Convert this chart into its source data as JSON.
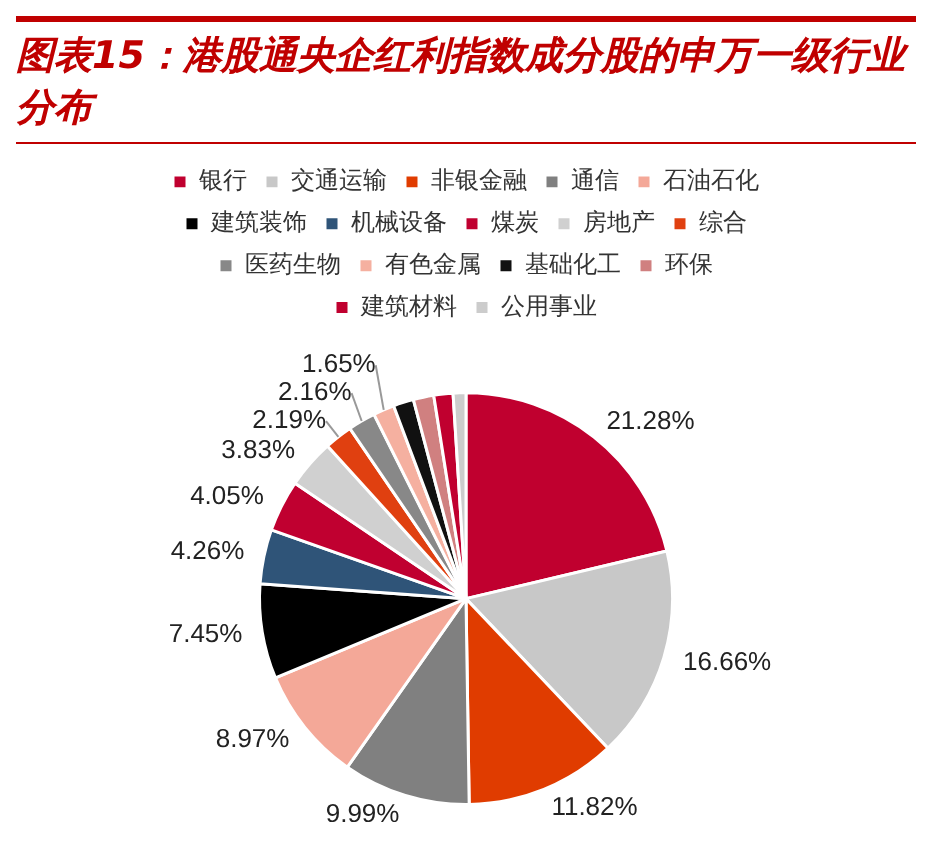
{
  "chart_data": {
    "type": "pie",
    "title": "图表15：港股通央企红利指数成分股的申万一级行业分布",
    "categories": [
      "银行",
      "交通运输",
      "非银金融",
      "通信",
      "石油石化",
      "建筑装饰",
      "机械设备",
      "煤炭",
      "房地产",
      "综合",
      "医药生物",
      "有色金属",
      "基础化工",
      "环保",
      "建筑材料",
      "公用事业"
    ],
    "values": [
      21.28,
      16.66,
      11.82,
      9.99,
      8.97,
      7.45,
      4.26,
      4.05,
      3.83,
      2.19,
      2.16,
      1.65,
      1.6,
      1.6,
      1.5,
      1.0
    ],
    "value_labels": [
      "21.28%",
      "16.66%",
      "11.82%",
      "9.99%",
      "8.97%",
      "7.45%",
      "4.26%",
      "4.05%",
      "3.83%",
      "2.19%",
      "2.16%",
      "1.65%",
      null,
      null,
      null,
      null
    ],
    "colors": [
      "#c0002f",
      "#c8c8c8",
      "#e03c00",
      "#808080",
      "#f4a898",
      "#000000",
      "#2f5478",
      "#c00030",
      "#d0d0d0",
      "#e04010",
      "#888888",
      "#f5b0a0",
      "#111111",
      "#d08080",
      "#c0002f",
      "#cccccc"
    ],
    "legend": "top"
  }
}
